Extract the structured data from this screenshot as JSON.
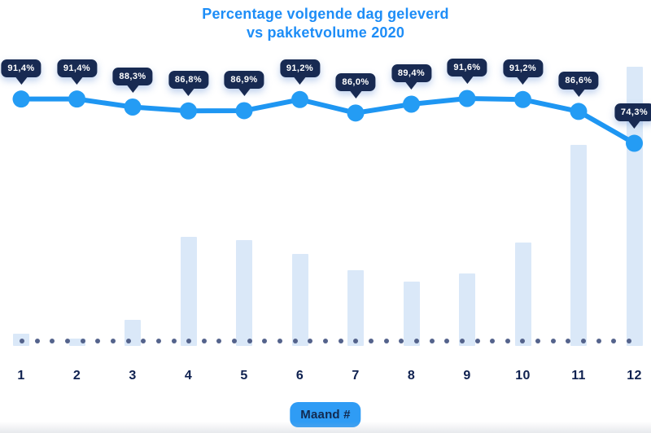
{
  "title": {
    "line1": "Percentage volgende dag geleverd",
    "line2": "vs pakketvolume 2020"
  },
  "colors": {
    "title": "#1d8df7",
    "line": "#1e96f2",
    "point": "#249cf4",
    "tooltip_bg": "#182a52",
    "tooltip_text": "#ffffff",
    "bar": "#dae8f8",
    "baseline_dot": "#54638c",
    "axis_label": "#0f2150",
    "badge_bg": "#2f9cf5",
    "badge_text": "#122a50"
  },
  "chart_data": {
    "type": "combo",
    "categories": [
      "1",
      "2",
      "3",
      "4",
      "5",
      "6",
      "7",
      "8",
      "9",
      "10",
      "11",
      "12"
    ],
    "series": [
      {
        "name": "Percentage volgende dag geleverd",
        "type": "line",
        "values": [
          91.4,
          91.4,
          88.3,
          86.8,
          86.9,
          91.2,
          86.0,
          89.4,
          91.6,
          91.2,
          86.6,
          74.3
        ],
        "labels": [
          "91,4%",
          "91,4%",
          "88,3%",
          "86,8%",
          "86,9%",
          "91,2%",
          "86,0%",
          "89,4%",
          "91,6%",
          "91,2%",
          "86,6%",
          "74,3%"
        ]
      },
      {
        "name": "Pakketvolume 2020",
        "type": "bar",
        "values": [
          4.4,
          2.6,
          9.3,
          39,
          38,
          33,
          27,
          23,
          26,
          37,
          72,
          100
        ]
      }
    ],
    "title": "Percentage volgende dag geleverd vs pakketvolume 2020",
    "xlabel": "Maand #",
    "ylim_line_pct": [
      70,
      95
    ],
    "bar_unit": "relative volume index (0-100, unlabeled axis)",
    "grid": false,
    "legend": "none"
  }
}
